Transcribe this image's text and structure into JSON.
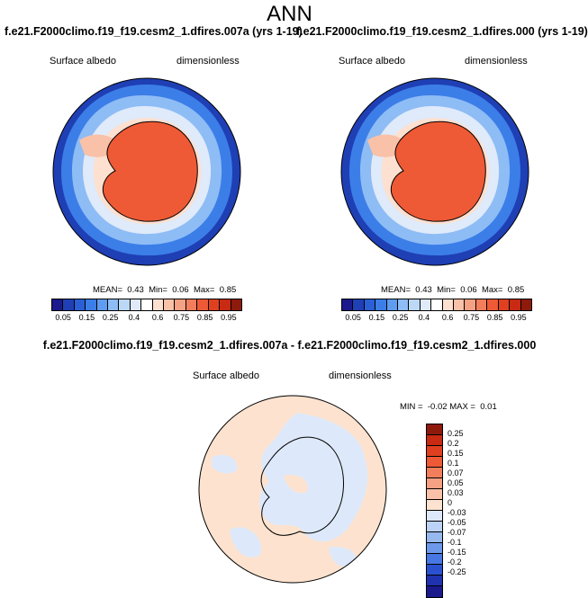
{
  "figure": {
    "title": "ANN",
    "left_panel": {
      "case": "f.e21.F2000climo.f19_f19.cesm2_1.dfires.007a (yrs 1-19)",
      "variable": "Surface albedo",
      "units": "dimensionless",
      "stats": {
        "mean_label": "MEAN=",
        "mean": "0.43",
        "min_label": "Min=",
        "min": "0.06",
        "max_label": "Max=",
        "max": "0.85"
      }
    },
    "right_panel": {
      "case": "f.e21.F2000climo.f19_f19.cesm2_1.dfires.000 (yrs 1-19)",
      "variable": "Surface albedo",
      "units": "dimensionless",
      "stats": {
        "mean_label": "MEAN=",
        "mean": "0.43",
        "min_label": "Min=",
        "min": "0.06",
        "max_label": "Max=",
        "max": "0.85"
      }
    },
    "diff_panel": {
      "title": "f.e21.F2000climo.f19_f19.cesm2_1.dfires.007a - f.e21.F2000climo.f19_f19.cesm2_1.dfires.000",
      "variable": "Surface albedo",
      "units": "dimensionless",
      "stats": {
        "min_label": "MIN =",
        "min": "-0.02",
        "max_label": "MAX =",
        "max": "0.01"
      }
    },
    "abs_colorbar": {
      "ticks": [
        "0.05",
        "0.15",
        "0.25",
        "0.4",
        "0.6",
        "0.75",
        "0.85",
        "0.95"
      ],
      "colors": [
        "#1a1a8c",
        "#1f3fb5",
        "#2a5fd6",
        "#3c7ee8",
        "#5f9cf0",
        "#8ebcf5",
        "#bcd8f7",
        "#dfeafa",
        "#ffffff",
        "#fde0d0",
        "#f9c1a8",
        "#f5a183",
        "#f27e5c",
        "#ee5a36",
        "#e0401f",
        "#c82a12",
        "#8e1a0c"
      ]
    },
    "diff_colorbar": {
      "ticks": [
        "0.25",
        "0.2",
        "0.15",
        "0.1",
        "0.07",
        "0.05",
        "0.03",
        "0",
        "-0.03",
        "-0.05",
        "-0.07",
        "-0.1",
        "-0.15",
        "-0.2",
        "-0.25"
      ],
      "colors": [
        "#8e1a0c",
        "#c82a12",
        "#e0401f",
        "#ee5a36",
        "#f27e5c",
        "#f5a183",
        "#f9c1a8",
        "#fde3cf",
        "#dde9fa",
        "#bcd3f5",
        "#97b9f0",
        "#6d99ea",
        "#4777e2",
        "#2a52d0",
        "#1f33b0",
        "#1a1a8c"
      ]
    }
  }
}
